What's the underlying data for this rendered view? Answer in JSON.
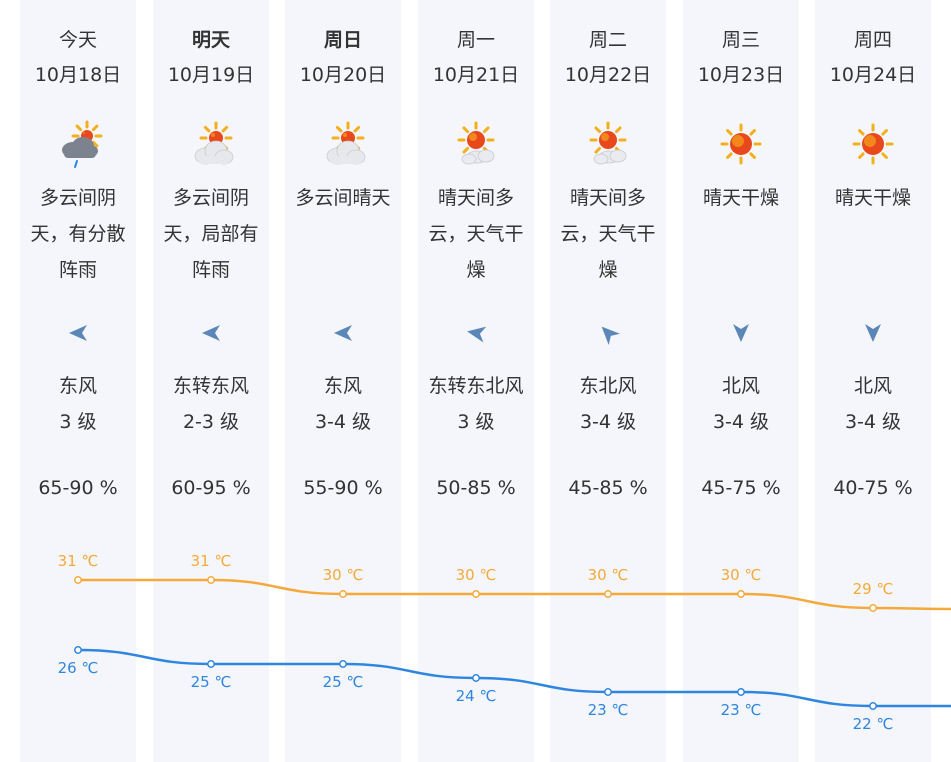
{
  "days": [
    {
      "day": "今天",
      "date": "10月18日",
      "bold": false,
      "icon": "cloud-sun-rain-icon",
      "condition": "多云间阴天，有分散阵雨",
      "wind_icon": "wind-arrow-east-icon",
      "wind_dir_deg": 180,
      "wind": "东风",
      "wind_level": "3 级",
      "humidity": "65-90 %"
    },
    {
      "day": "明天",
      "date": "10月19日",
      "bold": true,
      "icon": "cloud-sun-icon",
      "condition": "多云间阴天，局部有阵雨",
      "wind_icon": "wind-arrow-east-icon",
      "wind_dir_deg": 180,
      "wind": "东转东风",
      "wind_level": "2-3 级",
      "humidity": "60-95 %"
    },
    {
      "day": "周日",
      "date": "10月20日",
      "bold": true,
      "icon": "cloud-sun-icon",
      "condition": "多云间晴天",
      "wind_icon": "wind-arrow-east-icon",
      "wind_dir_deg": 180,
      "wind": "东风",
      "wind_level": "3-4 级",
      "humidity": "55-90 %"
    },
    {
      "day": "周一",
      "date": "10月21日",
      "bold": false,
      "icon": "sun-cloud-icon",
      "condition": "晴天间多云，天气干燥",
      "wind_icon": "wind-arrow-east-northeast-icon",
      "wind_dir_deg": 190,
      "wind": "东转东北风",
      "wind_level": "3 级",
      "humidity": "50-85 %"
    },
    {
      "day": "周二",
      "date": "10月22日",
      "bold": false,
      "icon": "sun-cloud-icon",
      "condition": "晴天间多云，天气干燥",
      "wind_icon": "wind-arrow-northeast-icon",
      "wind_dir_deg": 225,
      "wind": "东北风",
      "wind_level": "3-4 级",
      "humidity": "45-85 %"
    },
    {
      "day": "周三",
      "date": "10月23日",
      "bold": false,
      "icon": "sun-icon",
      "condition": "晴天干燥",
      "wind_icon": "wind-arrow-north-icon",
      "wind_dir_deg": 90,
      "wind": "北风",
      "wind_level": "3-4 级",
      "humidity": "45-75 %"
    },
    {
      "day": "周四",
      "date": "10月24日",
      "bold": false,
      "icon": "sun-icon",
      "condition": "晴天干燥",
      "wind_icon": "wind-arrow-north-icon",
      "wind_dir_deg": 90,
      "wind": "北风",
      "wind_level": "3-4 级",
      "humidity": "40-75 %"
    }
  ],
  "chart_data": {
    "type": "line",
    "categories": [
      "10月18日",
      "10月19日",
      "10月20日",
      "10月21日",
      "10月22日",
      "10月23日",
      "10月24日"
    ],
    "unit": "℃",
    "series": [
      {
        "name": "",
        "role": "high",
        "color": "#f5a93a",
        "values": [
          31,
          31,
          30,
          30,
          30,
          30,
          29
        ]
      },
      {
        "name": "",
        "role": "low",
        "color": "#2f86e0",
        "values": [
          26,
          25,
          25,
          24,
          23,
          23,
          22
        ]
      }
    ],
    "labels_high": [
      "31 ℃",
      "31 ℃",
      "30 ℃",
      "30 ℃",
      "30 ℃",
      "30 ℃",
      "29 ℃"
    ],
    "labels_low": [
      "26 ℃",
      "25 ℃",
      "25 ℃",
      "24 ℃",
      "23 ℃",
      "23 ℃",
      "22 ℃"
    ]
  },
  "colors": {
    "column_bg": "#f4f6fb",
    "wind_arrow": "#5b86b8",
    "high": "#f5a93a",
    "low": "#2f86e0"
  }
}
